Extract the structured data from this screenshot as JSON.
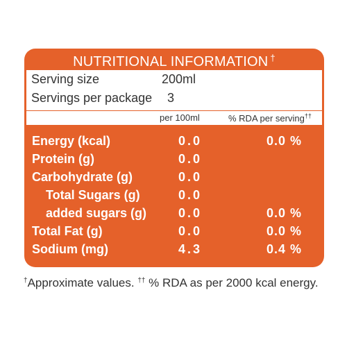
{
  "panel": {
    "title": "NUTRITIONAL INFORMATION",
    "title_mark": "†",
    "serving_size_label": "Serving size",
    "serving_size_value": "200ml",
    "servings_label": "Servings per package",
    "servings_value": "3",
    "col_per": "per 100ml",
    "col_rda": "% RDA per serving",
    "col_rda_mark": "††",
    "rows": [
      {
        "name": "Energy (kcal)",
        "per": "0.0",
        "rda": "0.0 %"
      },
      {
        "name": "Protein (g)",
        "per": "0.0",
        "rda": ""
      },
      {
        "name": "Carbohydrate (g)",
        "per": "0.0",
        "rda": ""
      },
      {
        "name": "Total Sugars (g)",
        "per": "0.0",
        "rda": ""
      },
      {
        "name": "added sugars (g)",
        "per": "0.0",
        "rda": "0.0 %"
      },
      {
        "name": "Total Fat (g)",
        "per": "0.0",
        "rda": "0.0 %"
      },
      {
        "name": "Sodium (mg)",
        "per": "4.3",
        "rda": "0.4 %"
      }
    ]
  },
  "footnote": {
    "mark1": "†",
    "text1": "Approximate values. ",
    "mark2": "††",
    "text2": " % RDA as per 2000 kcal energy."
  },
  "colors": {
    "panel": "#e5612a",
    "text_dark": "#333333",
    "text_light": "#ffffff"
  }
}
